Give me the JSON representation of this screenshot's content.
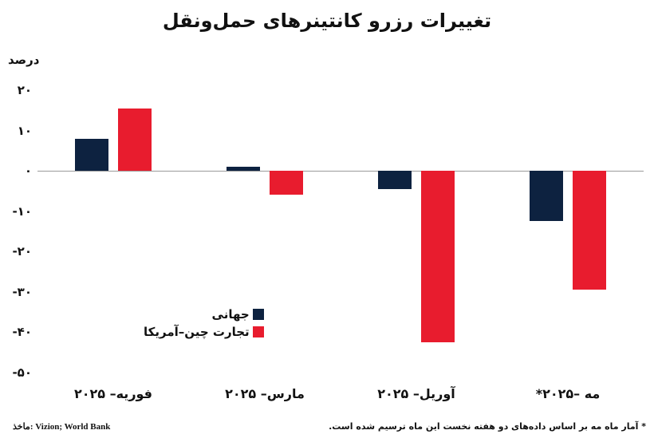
{
  "chart_data": {
    "type": "bar",
    "title": "تغییرات رزرو کانتینرهای حمل‌ونقل",
    "ylabel": "درصد",
    "xlabel": "",
    "ylim": [
      -50,
      20
    ],
    "yticks": [
      "۲۰",
      "۱۰",
      "۰",
      "-۱۰",
      "-۲۰",
      "-۳۰",
      "-۴۰",
      "-۵۰"
    ],
    "ytick_values": [
      20,
      10,
      0,
      -10,
      -20,
      -30,
      -40,
      -50
    ],
    "grid": false,
    "legend_position": "inside-lower-left",
    "categories": [
      "فوریه– ۲۰۲۵",
      "مارس– ۲۰۲۵",
      "آوریل– ۲۰۲۵",
      "مه –۲۰۲۵*"
    ],
    "series": [
      {
        "name": "جهانی",
        "color": "#0d2240",
        "values": [
          8,
          1,
          -4.5,
          -12.5
        ]
      },
      {
        "name": "تجارت چین–آمریکا",
        "color": "#e81c2e",
        "values": [
          15.5,
          -6,
          -42.5,
          -29.5
        ]
      }
    ],
    "source": "ماخذ: Vizion; World Bank",
    "footnote": "* آمار ماه مه بر اساس داده‌های دو هفته نخست این ماه ترسیم شده است."
  },
  "labels": {
    "source": "ماخذ: Vizion; World Bank",
    "footnote": "* آمار ماه مه بر اساس داده‌های دو هفته نخست این ماه ترسیم شده است."
  }
}
